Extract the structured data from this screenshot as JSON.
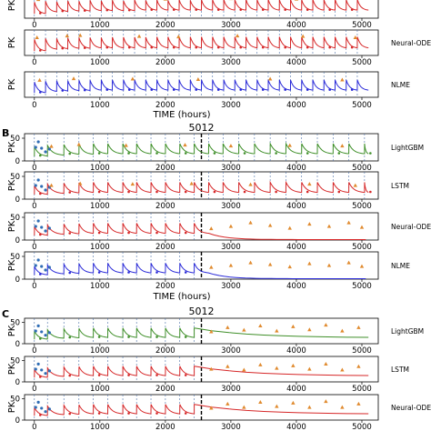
{
  "colors": {
    "observed": "#e08a2e",
    "lightgbm": "#3f8f29",
    "lstm": "#d62728",
    "neural_ode": "#d62728",
    "nlme": "#2a2ad8",
    "observed_history": "#2f6db5",
    "dose_line": "#4a6fa8",
    "cutoff": "#000000"
  },
  "icons": {
    "observed_marker": "triangle",
    "predicted_marker": "dot"
  },
  "chart_data": [
    {
      "id": "A",
      "type": "line",
      "title": "",
      "xlabel": "TIME (hours)",
      "ylabel": "PK",
      "xticks": [
        0,
        1000,
        2000,
        3000,
        4000,
        5000
      ],
      "xlim": [
        -150,
        5250
      ],
      "ylim": [
        0,
        60
      ],
      "yticks": [],
      "split_time": null,
      "dose_times": [
        0,
        170,
        340,
        510,
        680,
        850,
        1020,
        1190,
        1360,
        1530,
        1700,
        1870,
        2040,
        2210,
        2380,
        2550,
        2720,
        2890,
        3060,
        3230,
        3400,
        3570,
        3740,
        3910,
        4080,
        4250,
        4420,
        4590,
        4760,
        4930
      ],
      "panels": [
        {
          "label": "",
          "series": "lstm",
          "peaks": [
            38,
            40,
            39,
            41,
            40,
            42,
            41,
            42,
            41,
            43,
            42,
            43,
            42,
            43,
            42,
            43,
            43,
            44,
            43,
            44,
            43,
            44,
            43,
            44,
            43,
            44,
            43,
            44,
            43,
            44
          ],
          "troughs": [
            10,
            14,
            15,
            16,
            16,
            17,
            17,
            17,
            17,
            18,
            18,
            18,
            18,
            18,
            18,
            18,
            18,
            18,
            18,
            18,
            18,
            18,
            18,
            18,
            18,
            18,
            18,
            18,
            18,
            18
          ],
          "observed": [
            [
              60,
              44
            ],
            [
              400,
              47
            ],
            [
              1200,
              46
            ],
            [
              2000,
              45
            ],
            [
              3000,
              46
            ],
            [
              4000,
              45
            ],
            [
              4800,
              47
            ]
          ]
        },
        {
          "label": "Neural-ODE",
          "series": "neural_ode",
          "peaks": [
            38,
            40,
            40,
            41,
            42,
            42,
            42,
            43,
            43,
            43,
            43,
            44,
            44,
            44,
            44,
            44,
            44,
            44,
            44,
            44,
            44,
            44,
            44,
            44,
            44,
            44,
            44,
            44,
            44,
            44
          ],
          "troughs": [
            10,
            14,
            15,
            16,
            16,
            17,
            17,
            17,
            17,
            17,
            17,
            17,
            17,
            17,
            17,
            17,
            17,
            17,
            17,
            17,
            17,
            17,
            17,
            17,
            17,
            17,
            17,
            17,
            17,
            17
          ],
          "observed": [
            [
              40,
              42
            ],
            [
              500,
              46
            ],
            [
              700,
              47
            ],
            [
              1600,
              45
            ],
            [
              2200,
              44
            ],
            [
              3100,
              46
            ],
            [
              4100,
              45
            ],
            [
              4900,
              42
            ]
          ]
        },
        {
          "label": "NLME",
          "series": "nlme",
          "peaks": [
            36,
            38,
            39,
            39,
            40,
            40,
            41,
            41,
            41,
            41,
            41,
            41,
            41,
            41,
            41,
            41,
            41,
            41,
            41,
            41,
            41,
            41,
            41,
            41,
            41,
            41,
            41,
            41,
            41,
            41
          ],
          "troughs": [
            10,
            13,
            14,
            15,
            15,
            16,
            16,
            16,
            16,
            16,
            16,
            16,
            16,
            16,
            16,
            16,
            16,
            16,
            16,
            16,
            16,
            16,
            16,
            16,
            16,
            16,
            16,
            16,
            16,
            16
          ],
          "observed": [
            [
              80,
              40
            ],
            [
              600,
              44
            ],
            [
              1500,
              43
            ],
            [
              2500,
              42
            ],
            [
              3600,
              43
            ],
            [
              4700,
              41
            ]
          ]
        }
      ]
    },
    {
      "id": "B",
      "type": "line",
      "title": "5012",
      "xlabel": "TIME (hours)",
      "ylabel": "PK",
      "xticks": [
        0,
        1000,
        2000,
        3000,
        4000,
        5000
      ],
      "xlim": [
        -150,
        5250
      ],
      "ylim": [
        0,
        60
      ],
      "yticks": [
        0,
        50
      ],
      "split_time": 2550,
      "dose_times": [
        0,
        200,
        450,
        680,
        900,
        1120,
        1350,
        1560,
        1780,
        2000,
        2220,
        2440,
        2660,
        2880,
        3120,
        3360,
        3600,
        3840,
        4080,
        4320,
        4560,
        4800,
        5040
      ],
      "history_points": [
        [
          20,
          30
        ],
        [
          60,
          42
        ],
        [
          110,
          28
        ],
        [
          170,
          20
        ],
        [
          230,
          26
        ]
      ],
      "panels": [
        {
          "label": "LightGBM",
          "series": "lightgbm",
          "peaks": [
            32,
            34,
            36,
            37,
            38,
            38,
            38,
            38,
            38,
            38,
            38,
            38,
            38,
            38,
            38,
            38,
            38,
            38,
            38,
            38,
            38,
            38,
            38
          ],
          "troughs": [
            10,
            12,
            14,
            14,
            15,
            15,
            15,
            15,
            15,
            15,
            15,
            15,
            15,
            15,
            15,
            15,
            15,
            15,
            15,
            15,
            15,
            15,
            15
          ],
          "observed": [
            [
              260,
              32
            ],
            [
              680,
              36
            ],
            [
              1400,
              34
            ],
            [
              2300,
              35
            ],
            [
              3000,
              33
            ],
            [
              3900,
              34
            ],
            [
              4700,
              33
            ]
          ]
        },
        {
          "label": "LSTM",
          "series": "lstm",
          "peaks": [
            30,
            33,
            35,
            36,
            37,
            37,
            37,
            37,
            37,
            37,
            37,
            37,
            37,
            37,
            37,
            37,
            37,
            37,
            37,
            37,
            37,
            37,
            37
          ],
          "troughs": [
            10,
            12,
            13,
            14,
            14,
            14,
            14,
            14,
            14,
            14,
            14,
            14,
            14,
            14,
            14,
            14,
            14,
            14,
            14,
            14,
            14,
            14,
            14
          ],
          "observed": [
            [
              260,
              30
            ],
            [
              700,
              34
            ],
            [
              1500,
              33
            ],
            [
              2400,
              34
            ],
            [
              3300,
              32
            ],
            [
              4200,
              33
            ],
            [
              4900,
              30
            ]
          ]
        },
        {
          "label": "Neural-ODE",
          "series": "neural_ode",
          "peaks": [
            30,
            33,
            35,
            36,
            37,
            37,
            37,
            37,
            37,
            37,
            37,
            37
          ],
          "troughs": [
            10,
            12,
            13,
            14,
            14,
            14,
            14,
            14,
            14,
            14,
            14,
            14
          ],
          "decay_after_split": 0.8,
          "observed": [
            [
              2700,
              25
            ],
            [
              3000,
              30
            ],
            [
              3300,
              38
            ],
            [
              3600,
              32
            ],
            [
              3900,
              26
            ],
            [
              4200,
              35
            ],
            [
              4500,
              30
            ],
            [
              4800,
              38
            ],
            [
              5000,
              28
            ]
          ]
        },
        {
          "label": "NLME",
          "series": "nlme",
          "peaks": [
            28,
            31,
            33,
            34,
            35,
            35,
            35,
            35,
            35,
            35,
            35,
            35
          ],
          "troughs": [
            9,
            11,
            12,
            13,
            13,
            13,
            13,
            13,
            13,
            13,
            13,
            13
          ],
          "decay_after_split": 0.8,
          "observed": [
            [
              2700,
              26
            ],
            [
              3000,
              30
            ],
            [
              3300,
              36
            ],
            [
              3600,
              32
            ],
            [
              3900,
              27
            ],
            [
              4200,
              34
            ],
            [
              4500,
              30
            ],
            [
              4800,
              36
            ],
            [
              5000,
              28
            ]
          ]
        }
      ]
    },
    {
      "id": "C",
      "type": "line",
      "title": "5012",
      "xlabel": "",
      "ylabel": "PK",
      "xticks": [
        0,
        1000,
        2000,
        3000,
        4000,
        5000
      ],
      "xlim": [
        -150,
        5250
      ],
      "ylim": [
        0,
        60
      ],
      "yticks": [
        0,
        50
      ],
      "split_time": 2550,
      "dose_times": [
        0,
        200,
        450,
        680,
        900,
        1120,
        1350,
        1560,
        1780,
        2000,
        2220,
        2440
      ],
      "history_points": [
        [
          20,
          30
        ],
        [
          60,
          42
        ],
        [
          110,
          28
        ],
        [
          170,
          20
        ],
        [
          230,
          26
        ]
      ],
      "panels": [
        {
          "label": "LightGBM",
          "series": "lightgbm",
          "peaks": [
            30,
            33,
            35,
            36,
            37,
            37,
            37,
            37,
            37,
            37,
            37,
            37
          ],
          "troughs": [
            10,
            12,
            13,
            14,
            14,
            14,
            14,
            14,
            14,
            14,
            14,
            14
          ],
          "decay_after_split": 0.7,
          "observed": [
            [
              2700,
              28
            ],
            [
              2950,
              38
            ],
            [
              3200,
              32
            ],
            [
              3450,
              42
            ],
            [
              3700,
              30
            ],
            [
              3950,
              40
            ],
            [
              4200,
              33
            ],
            [
              4450,
              44
            ],
            [
              4700,
              30
            ],
            [
              4950,
              38
            ]
          ]
        },
        {
          "label": "LSTM",
          "series": "lstm",
          "peaks": [
            30,
            33,
            35,
            36,
            37,
            37,
            37,
            37,
            37,
            37,
            37,
            37
          ],
          "troughs": [
            10,
            12,
            13,
            14,
            14,
            14,
            14,
            14,
            14,
            14,
            14,
            14
          ],
          "decay_after_split": 0.8,
          "observed": [
            [
              2700,
              30
            ],
            [
              2950,
              36
            ],
            [
              3200,
              28
            ],
            [
              3450,
              40
            ],
            [
              3700,
              32
            ],
            [
              3950,
              38
            ],
            [
              4200,
              30
            ],
            [
              4450,
              42
            ],
            [
              4700,
              28
            ],
            [
              4950,
              36
            ]
          ]
        },
        {
          "label": "Neural-ODE",
          "series": "neural_ode",
          "peaks": [
            30,
            33,
            35,
            36,
            37,
            37,
            37,
            37,
            37,
            37,
            37,
            37
          ],
          "troughs": [
            10,
            12,
            13,
            14,
            14,
            14,
            14,
            14,
            14,
            14,
            14,
            14
          ],
          "decay_after_split": 0.8,
          "observed": [
            [
              2700,
              28
            ],
            [
              2950,
              38
            ],
            [
              3200,
              30
            ],
            [
              3450,
              42
            ],
            [
              3700,
              32
            ],
            [
              3950,
              40
            ],
            [
              4200,
              30
            ],
            [
              4450,
              44
            ],
            [
              4700,
              30
            ],
            [
              4950,
              38
            ]
          ]
        }
      ]
    }
  ],
  "labels": {
    "section_B": "B",
    "section_C": "C"
  }
}
